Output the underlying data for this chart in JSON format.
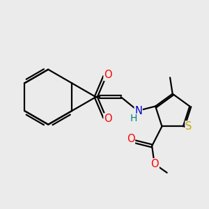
{
  "bg_color": "#ebebeb",
  "bond_color": "#000000",
  "bond_width": 1.6,
  "atom_colors": {
    "O": "#ff0000",
    "N": "#0000cc",
    "S": "#bbaa00",
    "H": "#008080"
  },
  "font_size": 10.5
}
